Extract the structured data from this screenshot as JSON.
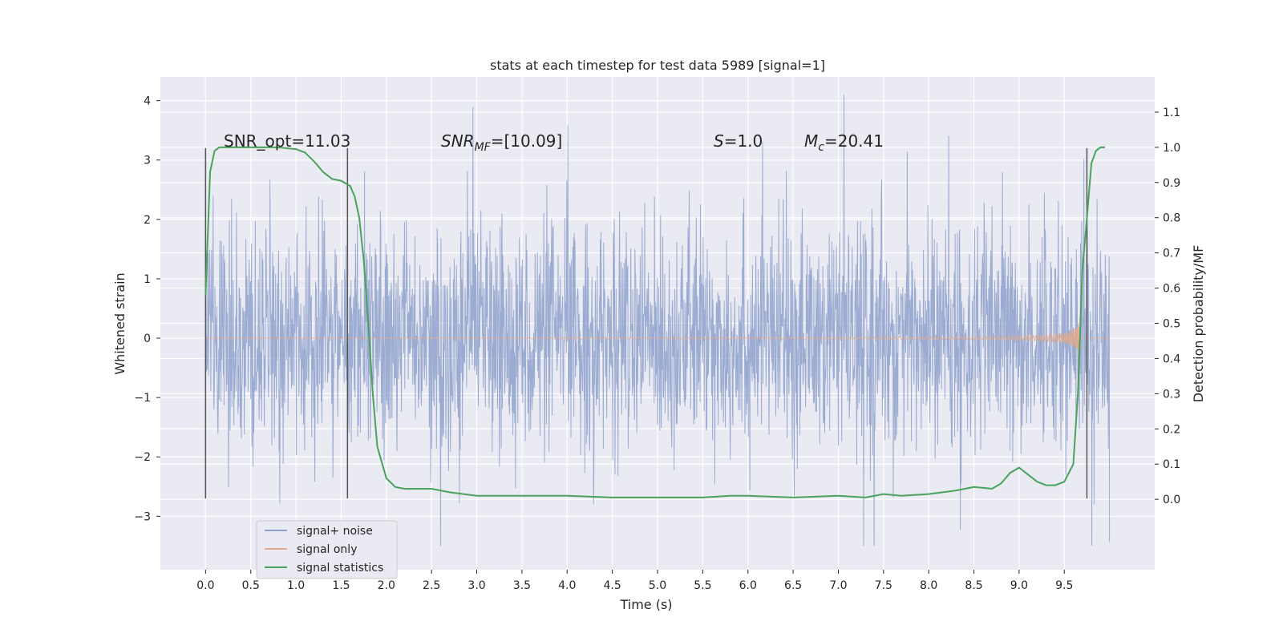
{
  "chart_data": {
    "type": "line",
    "title": "stats at each timestep for test data 5989 [signal=1]",
    "xlabel": "Time (s)",
    "ylabel_left": "Whitened strain",
    "ylabel_right": "Detection probability/MF",
    "xlim": [
      -0.5,
      10.5
    ],
    "ylim_left": [
      -3.9,
      4.4
    ],
    "ylim_right": [
      -0.2,
      1.2
    ],
    "x_ticks": [
      "0.0",
      "0.5",
      "1.0",
      "1.5",
      "2.0",
      "2.5",
      "3.0",
      "3.5",
      "4.0",
      "4.5",
      "5.0",
      "5.5",
      "6.0",
      "6.5",
      "7.0",
      "7.5",
      "8.0",
      "8.5",
      "9.0",
      "9.5"
    ],
    "y_left_ticks": [
      "4",
      "3",
      "2",
      "1",
      "0",
      "−1",
      "−2",
      "−3"
    ],
    "y_right_ticks": [
      "1.1",
      "1.0",
      "0.9",
      "0.8",
      "0.7",
      "0.6",
      "0.5",
      "0.4",
      "0.3",
      "0.2",
      "0.1",
      "0.0"
    ],
    "grid": true,
    "legend_position": "bottom-left",
    "series": [
      {
        "name": "signal+ noise",
        "color": "#8da0cb"
      },
      {
        "name": "signal only",
        "color": "#e1a98c"
      },
      {
        "name": "signal statistics",
        "color": "#4aa25c",
        "x": [
          0.0,
          0.05,
          0.1,
          0.15,
          0.2,
          0.3,
          0.5,
          0.8,
          1.0,
          1.1,
          1.2,
          1.3,
          1.4,
          1.5,
          1.6,
          1.65,
          1.7,
          1.75,
          1.8,
          1.85,
          1.9,
          2.0,
          2.1,
          2.2,
          2.3,
          2.5,
          2.7,
          3.0,
          3.5,
          4.0,
          4.5,
          5.0,
          5.5,
          5.8,
          6.0,
          6.5,
          7.0,
          7.3,
          7.5,
          7.7,
          8.0,
          8.3,
          8.5,
          8.7,
          8.8,
          8.9,
          9.0,
          9.1,
          9.2,
          9.3,
          9.4,
          9.5,
          9.6,
          9.65,
          9.7,
          9.75,
          9.8,
          9.85,
          9.9,
          9.95
        ],
        "y": [
          0.58,
          0.93,
          0.99,
          1.0,
          1.0,
          1.0,
          1.0,
          1.0,
          0.995,
          0.985,
          0.96,
          0.93,
          0.91,
          0.905,
          0.89,
          0.86,
          0.8,
          0.68,
          0.5,
          0.3,
          0.15,
          0.06,
          0.035,
          0.03,
          0.03,
          0.03,
          0.02,
          0.01,
          0.01,
          0.01,
          0.005,
          0.005,
          0.005,
          0.01,
          0.01,
          0.005,
          0.01,
          0.005,
          0.015,
          0.01,
          0.015,
          0.025,
          0.035,
          0.03,
          0.045,
          0.075,
          0.09,
          0.07,
          0.05,
          0.04,
          0.04,
          0.05,
          0.1,
          0.3,
          0.65,
          0.8,
          0.955,
          0.99,
          1.0,
          1.0
        ]
      }
    ],
    "markers_x": [
      0.0,
      1.57,
      9.75
    ],
    "annotations": [
      {
        "text": "SNR_opt=11.03"
      },
      {
        "text": "SNR",
        "sub": "MF",
        "suffix": "=[10.09]"
      },
      {
        "text": "S",
        "suffix": "=1.0"
      },
      {
        "text": "M",
        "sub": "c",
        "suffix": "=20.41"
      }
    ]
  }
}
